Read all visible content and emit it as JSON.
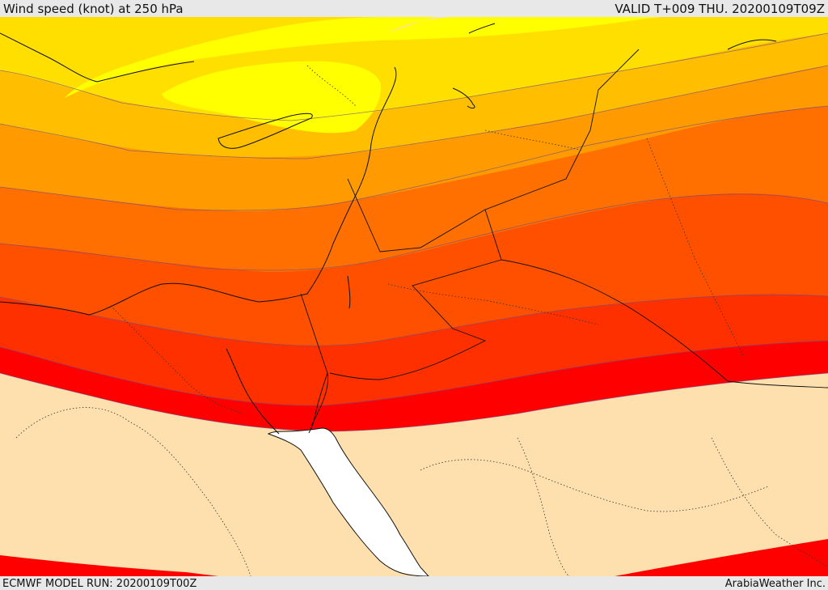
{
  "header": {
    "title": "Wind speed (knot) at 250 hPa",
    "valid": "VALID T+009 THU. 20200109T09Z"
  },
  "footer": {
    "model_run": "ECMWF MODEL RUN: 20200109T00Z",
    "credit": "ArabiaWeather Inc."
  },
  "map": {
    "sea_color": "#ffffff",
    "land_color": "#fde0ad",
    "wind_band_colors": [
      "#fde0ad",
      "#ffff00",
      "#ffdf00",
      "#ffbf00",
      "#ff9a00",
      "#ff7000",
      "#ff5000",
      "#ff3000",
      "#ff0000"
    ]
  }
}
